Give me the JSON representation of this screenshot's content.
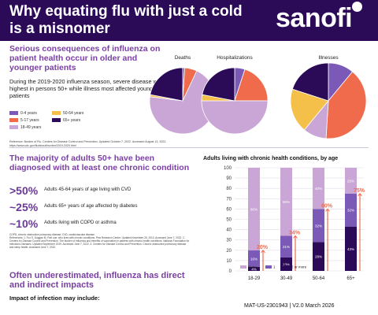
{
  "header": {
    "title": "Why equating flu with just a cold is a misnomer",
    "brand": "sanofi"
  },
  "section1": {
    "title": "Serious consequences of influenza on patient health occur in older and younger patients",
    "body": "During the 2019-2020 influenza season, severe disease was highest in persons 50+ while illness most affected younger patients",
    "legend": [
      {
        "label": "0-4 years",
        "color": "#7b5ab7"
      },
      {
        "label": "50-64 years",
        "color": "#f5c04a"
      },
      {
        "label": "5-17 years",
        "color": "#ef6b4c"
      },
      {
        "label": "65+ years",
        "color": "#2b0a57"
      },
      {
        "label": "18-49 years",
        "color": "#c9a6d6"
      }
    ],
    "reference": "Reference: Burden of Flu. Centers for Disease Control and Prevention. Updated October 7, 2022. Accessed August 13, 2022. https://www.cdc.gov/flu/about/burden/2019-2020.html"
  },
  "pies": [
    {
      "label": "Deaths",
      "slices": [
        1,
        1,
        6,
        22,
        70
      ]
    },
    {
      "label": "Hospitalizations",
      "slices": [
        5,
        3,
        20,
        22,
        50
      ]
    },
    {
      "label": "Illnesses",
      "slices": [
        11,
        19,
        40,
        20,
        10
      ]
    }
  ],
  "section2": {
    "title": "The majority of adults 50+ have been diagnosed with at least one chronic condition",
    "stats": [
      {
        "value": ">50%",
        "text": "Adults 45-64 years of age living with CVD"
      },
      {
        "value": "~25%",
        "text": "Adults 65+ years of age affected by diabetes"
      },
      {
        "value": "~10%",
        "text": "Adults living with COPD or asthma"
      }
    ],
    "abbrev": "COPD, chronic obstructive pulmonary disease; CVD, cardiovascular disease.",
    "references": "References: 1. Fox S, Duggan M. Part one: who lives with chronic conditions. Pew Research Center. Updated November 26, 2013. Accessed June 7, 2022. 2. Centers for Disease Control and Prevention. The burden of influenza and benefits of vaccination in patients with chronic health conditions. National Foundation for Infectious Diseases. Updated September 2019. Accessed June 7, 2022. 3. Centers for Disease Control and Prevention. Chronic obstructive pulmonary disease and sleep health. Accessed June 7, 2022."
  },
  "section3": {
    "title": "Often underestimated, influenza has direct and indirect impacts",
    "subtitle": "Impact of infection may include:"
  },
  "chart_data": {
    "type": "bar",
    "title": "Adults living with chronic health conditions, by age",
    "categories": [
      "18-29",
      "30-49",
      "50-64",
      "65+"
    ],
    "ylim": [
      0,
      100
    ],
    "yticks": [
      0,
      10,
      20,
      30,
      40,
      50,
      60,
      70,
      80,
      90,
      100
    ],
    "series": [
      {
        "name": "None",
        "color": "#c9a6d6",
        "values": [
          80,
          66,
          40,
          25
        ]
      },
      {
        "name": "1",
        "color": "#7b5ab7",
        "values": [
          16,
          21,
          32,
          32
        ]
      },
      {
        "name": "2 or more",
        "color": "#2b0a57",
        "values": [
          4,
          13,
          28,
          43
        ]
      }
    ],
    "totals": [
      "20%",
      "34%",
      "60%",
      "75%"
    ],
    "total_color": "#ef6b4c",
    "grid": true,
    "legend": "bottom"
  },
  "footer": {
    "code": "MAT-US-2301943 | V2.0 March 2026"
  }
}
